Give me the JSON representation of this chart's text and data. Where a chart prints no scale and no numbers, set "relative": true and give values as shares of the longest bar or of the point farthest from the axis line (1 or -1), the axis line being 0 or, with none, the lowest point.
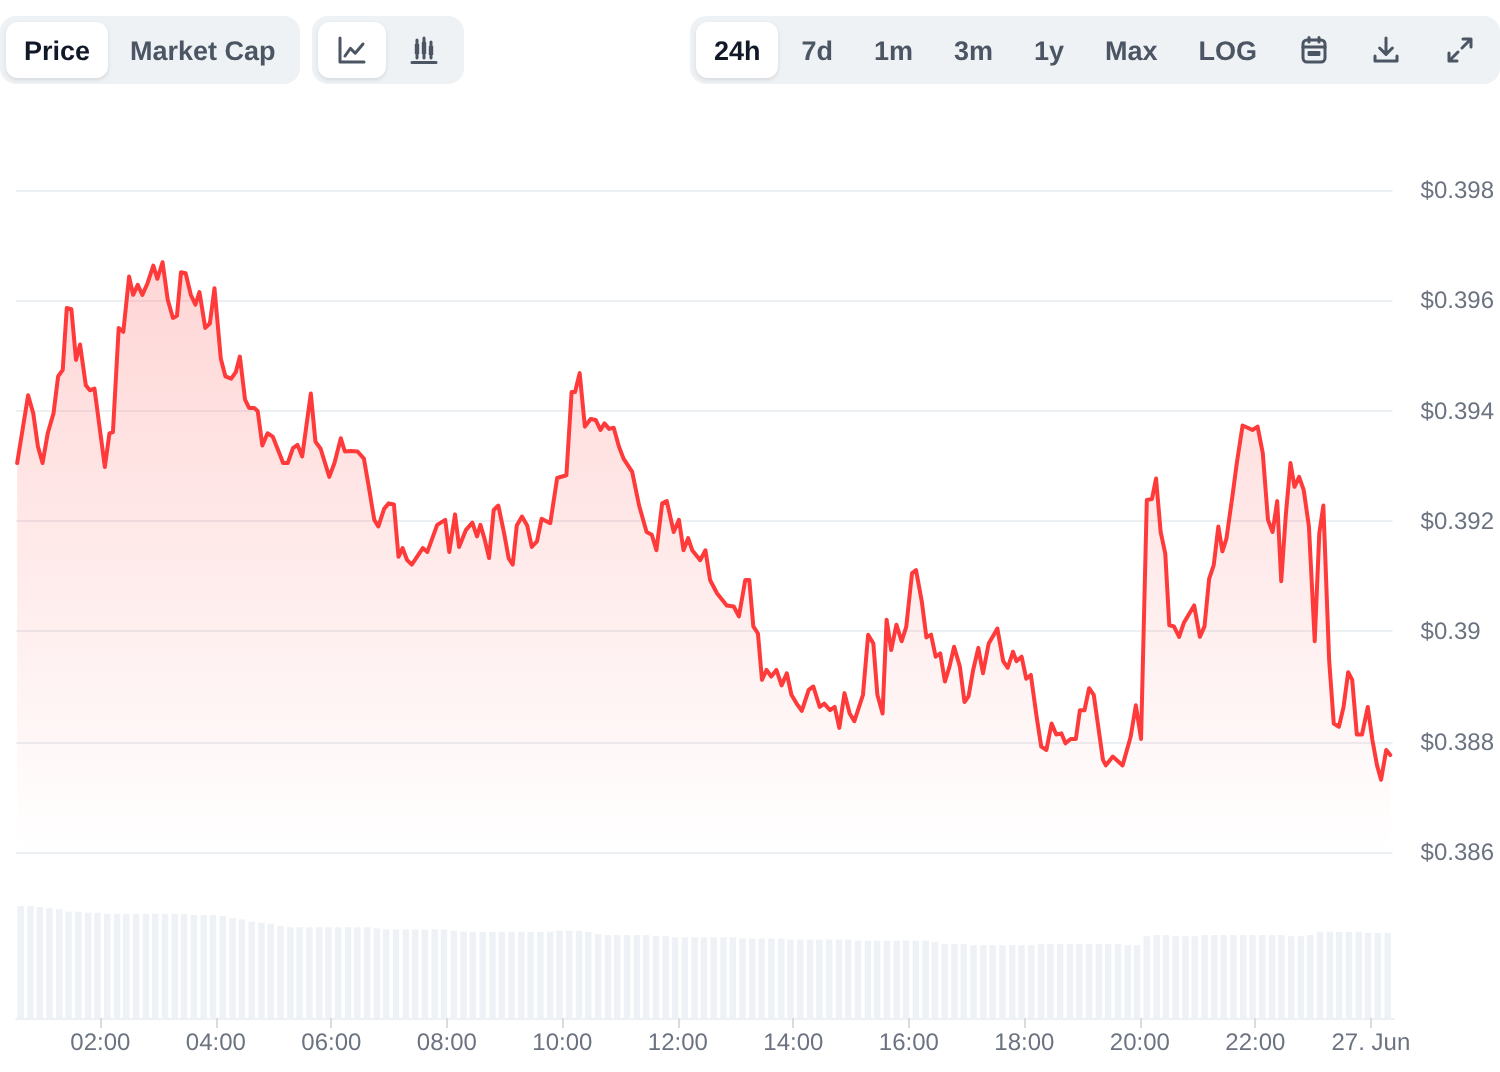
{
  "chart_data": [
    {
      "type": "area",
      "annotations": [
        "Price",
        "Market Cap",
        "24h",
        "7d",
        "1m",
        "3m",
        "1y",
        "Max",
        "LOG"
      ],
      "x": [
        0.56,
        0.75,
        0.84,
        0.92,
        1.0,
        1.09,
        1.19,
        1.27,
        1.35,
        1.42,
        1.5,
        1.58,
        1.65,
        1.75,
        1.82,
        1.9,
        2.08,
        2.16,
        2.22,
        2.32,
        2.4,
        2.5,
        2.57,
        2.65,
        2.73,
        2.82,
        2.92,
        2.99,
        3.08,
        3.17,
        3.26,
        3.33,
        3.4,
        3.48,
        3.57,
        3.65,
        3.72,
        3.82,
        3.9,
        3.98,
        4.09,
        4.17,
        4.27,
        4.35,
        4.42,
        4.51,
        4.58,
        4.67,
        4.73,
        4.81,
        4.9,
        4.99,
        5.07,
        5.17,
        5.25,
        5.34,
        5.42,
        5.5,
        5.65,
        5.73,
        5.82,
        5.97,
        6.06,
        6.17,
        6.24,
        6.34,
        6.46,
        6.57,
        6.65,
        6.75,
        6.82,
        6.92,
        7.0,
        7.09,
        7.17,
        7.24,
        7.32,
        7.4,
        7.49,
        7.59,
        7.67,
        7.84,
        7.98,
        8.05,
        8.15,
        8.22,
        8.34,
        8.45,
        8.53,
        8.59,
        8.66,
        8.74,
        8.82,
        8.9,
        9.0,
        9.08,
        9.15,
        9.22,
        9.31,
        9.4,
        9.48,
        9.57,
        9.65,
        9.8,
        9.92,
        10.08,
        10.17,
        10.23,
        10.31,
        10.4,
        10.5,
        10.59,
        10.67,
        10.74,
        10.82,
        10.9,
        10.99,
        11.07,
        11.22,
        11.34,
        11.47,
        11.56,
        11.64,
        11.74,
        11.82,
        11.94,
        12.03,
        12.11,
        12.19,
        12.26,
        12.4,
        12.49,
        12.57,
        12.69,
        12.86,
        12.98,
        13.07,
        13.18,
        13.25,
        13.32,
        13.4,
        13.47,
        13.55,
        13.63,
        13.72,
        13.81,
        13.9,
        13.98,
        14.07,
        14.16,
        14.28,
        14.36,
        14.47,
        14.55,
        14.65,
        14.73,
        14.81,
        14.9,
        14.99,
        15.07,
        15.22,
        15.31,
        15.4,
        15.47,
        15.56,
        15.63,
        15.71,
        15.8,
        15.89,
        15.97,
        16.07,
        16.14,
        16.24,
        16.32,
        16.4,
        16.48,
        16.56,
        16.64,
        16.72,
        16.8,
        16.9,
        16.98,
        17.05,
        17.13,
        17.22,
        17.3,
        17.4,
        17.55,
        17.65,
        17.73,
        17.82,
        17.88,
        17.97,
        18.05,
        18.13,
        18.23,
        18.31,
        18.4,
        18.49,
        18.57,
        18.66,
        18.73,
        18.82,
        18.91,
        18.98,
        19.06,
        19.14,
        19.22,
        19.38,
        19.43,
        19.55,
        19.72,
        19.86,
        19.95,
        20.04,
        20.14,
        20.23,
        20.3,
        20.38,
        20.46,
        20.53,
        20.61,
        20.7,
        20.78,
        20.96,
        21.06,
        21.14,
        21.22,
        21.3,
        21.38,
        21.45,
        21.52,
        21.63,
        21.7,
        21.8,
        21.89,
        21.97,
        22.06,
        22.15,
        22.24,
        22.32,
        22.4,
        22.47,
        22.55,
        22.63,
        22.7,
        22.78,
        22.86,
        22.95,
        23.05,
        23.13,
        23.2,
        23.3,
        23.38,
        23.47,
        23.55,
        23.63,
        23.7,
        23.78,
        23.87,
        23.97,
        24.05,
        24.13,
        24.2,
        24.29,
        24.36
      ],
      "values": [
        0.39305,
        0.39428,
        0.39395,
        0.39335,
        0.39305,
        0.39359,
        0.39395,
        0.39462,
        0.39474,
        0.39586,
        0.39584,
        0.39492,
        0.3952,
        0.39446,
        0.39437,
        0.3944,
        0.39298,
        0.39359,
        0.39361,
        0.3955,
        0.39543,
        0.39643,
        0.3961,
        0.39628,
        0.3961,
        0.39631,
        0.39663,
        0.39639,
        0.39669,
        0.39601,
        0.39568,
        0.39572,
        0.39651,
        0.39649,
        0.3961,
        0.39592,
        0.39615,
        0.3955,
        0.39558,
        0.39622,
        0.39494,
        0.39462,
        0.39458,
        0.3947,
        0.39498,
        0.3942,
        0.39405,
        0.39405,
        0.39399,
        0.39337,
        0.39359,
        0.39353,
        0.39332,
        0.39305,
        0.39305,
        0.39332,
        0.39338,
        0.39317,
        0.39431,
        0.39344,
        0.39331,
        0.3928,
        0.39305,
        0.3935,
        0.39326,
        0.39327,
        0.39326,
        0.39313,
        0.39265,
        0.39202,
        0.3919,
        0.39222,
        0.39232,
        0.3923,
        0.39135,
        0.39151,
        0.39129,
        0.39121,
        0.39135,
        0.39151,
        0.39144,
        0.39193,
        0.39202,
        0.39144,
        0.39212,
        0.39153,
        0.39184,
        0.39197,
        0.39172,
        0.39193,
        0.39168,
        0.39133,
        0.3922,
        0.39228,
        0.39178,
        0.39132,
        0.39121,
        0.39192,
        0.39208,
        0.39192,
        0.39153,
        0.39163,
        0.39204,
        0.39196,
        0.39278,
        0.39283,
        0.39434,
        0.39434,
        0.39468,
        0.39371,
        0.39385,
        0.39383,
        0.39365,
        0.39377,
        0.39367,
        0.39369,
        0.39335,
        0.39313,
        0.39289,
        0.39228,
        0.3918,
        0.39175,
        0.39147,
        0.39232,
        0.39236,
        0.3918,
        0.39202,
        0.39147,
        0.39169,
        0.39147,
        0.39129,
        0.39147,
        0.39093,
        0.39069,
        0.39047,
        0.39045,
        0.39027,
        0.39093,
        0.39093,
        0.39009,
        0.38996,
        0.38912,
        0.3893,
        0.38918,
        0.3893,
        0.38902,
        0.38924,
        0.38885,
        0.38869,
        0.38856,
        0.38894,
        0.389,
        0.38863,
        0.38869,
        0.38857,
        0.38863,
        0.38825,
        0.38888,
        0.38851,
        0.38837,
        0.38885,
        0.38994,
        0.38978,
        0.38885,
        0.38851,
        0.39021,
        0.38966,
        0.39012,
        0.38982,
        0.39008,
        0.39105,
        0.39111,
        0.39054,
        0.38989,
        0.38994,
        0.38954,
        0.3896,
        0.38909,
        0.38936,
        0.38972,
        0.38936,
        0.38872,
        0.38882,
        0.3893,
        0.3897,
        0.38924,
        0.38978,
        0.39005,
        0.38946,
        0.38934,
        0.38963,
        0.38946,
        0.38954,
        0.38914,
        0.38921,
        0.38845,
        0.38791,
        0.38785,
        0.38833,
        0.38813,
        0.38815,
        0.38797,
        0.38805,
        0.38805,
        0.38857,
        0.38857,
        0.38897,
        0.38885,
        0.38767,
        0.38757,
        0.38773,
        0.38757,
        0.38809,
        0.38866,
        0.38805,
        0.39238,
        0.3924,
        0.39277,
        0.3918,
        0.39141,
        0.39011,
        0.39009,
        0.3899,
        0.39015,
        0.39047,
        0.3899,
        0.39009,
        0.39095,
        0.3912,
        0.3919,
        0.39145,
        0.39168,
        0.3925,
        0.39305,
        0.39373,
        0.39369,
        0.39365,
        0.39371,
        0.39323,
        0.39202,
        0.3918,
        0.39236,
        0.39091,
        0.39212,
        0.39305,
        0.39262,
        0.3928,
        0.39256,
        0.3919,
        0.38982,
        0.39178,
        0.39228,
        0.38948,
        0.38833,
        0.38827,
        0.38863,
        0.38926,
        0.38912,
        0.38813,
        0.38813,
        0.38863,
        0.38803,
        0.38757,
        0.38731,
        0.38785,
        0.38776
      ],
      "color": "#ff3a3a",
      "xlim": [
        0.54,
        24.4
      ],
      "ylim": [
        0.386,
        0.398
      ],
      "yticks": [
        {
          "value": 0.386,
          "label": "$0.386"
        },
        {
          "value": 0.388,
          "label": "$0.388"
        },
        {
          "value": 0.39,
          "label": "$0.39"
        },
        {
          "value": 0.392,
          "label": "$0.392"
        },
        {
          "value": 0.394,
          "label": "$0.394"
        },
        {
          "value": 0.396,
          "label": "$0.396"
        },
        {
          "value": 0.398,
          "label": "$0.398"
        }
      ],
      "grid": "y",
      "tick_labels": "y"
    },
    {
      "type": "bar",
      "relative": true,
      "x": [
        0.62,
        0.79,
        0.95,
        1.12,
        1.29,
        1.45,
        1.62,
        1.79,
        1.95,
        2.12,
        2.29,
        2.45,
        2.62,
        2.79,
        2.95,
        3.12,
        3.29,
        3.45,
        3.62,
        3.79,
        3.95,
        4.12,
        4.29,
        4.45,
        4.62,
        4.79,
        4.95,
        5.12,
        5.29,
        5.45,
        5.62,
        5.79,
        5.95,
        6.12,
        6.29,
        6.45,
        6.62,
        6.79,
        6.95,
        7.12,
        7.29,
        7.45,
        7.62,
        7.79,
        7.95,
        8.12,
        8.29,
        8.45,
        8.62,
        8.79,
        8.95,
        9.12,
        9.29,
        9.45,
        9.62,
        9.79,
        9.95,
        10.12,
        10.29,
        10.45,
        10.62,
        10.79,
        10.95,
        11.12,
        11.29,
        11.45,
        11.62,
        11.79,
        11.95,
        12.12,
        12.29,
        12.45,
        12.62,
        12.79,
        12.95,
        13.12,
        13.29,
        13.45,
        13.62,
        13.79,
        13.95,
        14.12,
        14.29,
        14.45,
        14.62,
        14.79,
        14.95,
        15.12,
        15.29,
        15.45,
        15.62,
        15.79,
        15.95,
        16.12,
        16.29,
        16.45,
        16.62,
        16.79,
        16.95,
        17.12,
        17.29,
        17.45,
        17.62,
        17.79,
        17.95,
        18.12,
        18.29,
        18.45,
        18.62,
        18.79,
        18.95,
        19.12,
        19.29,
        19.45,
        19.62,
        19.79,
        19.95,
        20.12,
        20.29,
        20.45,
        20.62,
        20.79,
        20.95,
        21.12,
        21.29,
        21.45,
        21.62,
        21.79,
        21.95,
        22.12,
        22.29,
        22.45,
        22.62,
        22.79,
        22.95,
        23.12,
        23.29,
        23.45,
        23.62,
        23.79,
        23.95,
        24.12,
        24.29
      ],
      "values": [
        1,
        1,
        0.99,
        0.98,
        0.97,
        0.95,
        0.95,
        0.94,
        0.94,
        0.93,
        0.93,
        0.93,
        0.93,
        0.93,
        0.93,
        0.93,
        0.93,
        0.93,
        0.92,
        0.92,
        0.92,
        0.91,
        0.89,
        0.88,
        0.86,
        0.85,
        0.84,
        0.82,
        0.81,
        0.81,
        0.81,
        0.81,
        0.81,
        0.81,
        0.81,
        0.81,
        0.81,
        0.8,
        0.79,
        0.79,
        0.79,
        0.79,
        0.79,
        0.79,
        0.79,
        0.78,
        0.77,
        0.77,
        0.77,
        0.77,
        0.77,
        0.77,
        0.77,
        0.77,
        0.77,
        0.77,
        0.78,
        0.78,
        0.78,
        0.77,
        0.75,
        0.74,
        0.74,
        0.74,
        0.74,
        0.74,
        0.73,
        0.73,
        0.72,
        0.72,
        0.72,
        0.72,
        0.72,
        0.72,
        0.72,
        0.71,
        0.71,
        0.71,
        0.71,
        0.71,
        0.7,
        0.7,
        0.7,
        0.7,
        0.7,
        0.7,
        0.7,
        0.69,
        0.69,
        0.69,
        0.69,
        0.69,
        0.69,
        0.69,
        0.69,
        0.68,
        0.66,
        0.66,
        0.66,
        0.65,
        0.65,
        0.65,
        0.65,
        0.65,
        0.65,
        0.65,
        0.66,
        0.66,
        0.66,
        0.66,
        0.66,
        0.66,
        0.66,
        0.66,
        0.66,
        0.65,
        0.65,
        0.73,
        0.74,
        0.74,
        0.73,
        0.73,
        0.73,
        0.74,
        0.74,
        0.74,
        0.74,
        0.74,
        0.74,
        0.74,
        0.74,
        0.74,
        0.73,
        0.73,
        0.74,
        0.77,
        0.77,
        0.77,
        0.77,
        0.77,
        0.76,
        0.76,
        0.76
      ],
      "color": "#eef1f5",
      "xlim": [
        0.54,
        24.4
      ],
      "xticks": [
        {
          "value": 2,
          "label": "02:00"
        },
        {
          "value": 4,
          "label": "04:00"
        },
        {
          "value": 6,
          "label": "06:00"
        },
        {
          "value": 8,
          "label": "08:00"
        },
        {
          "value": 10,
          "label": "10:00"
        },
        {
          "value": 12,
          "label": "12:00"
        },
        {
          "value": 14,
          "label": "14:00"
        },
        {
          "value": 16,
          "label": "16:00"
        },
        {
          "value": 18,
          "label": "18:00"
        },
        {
          "value": 20,
          "label": "20:00"
        },
        {
          "value": 22,
          "label": "22:00"
        },
        {
          "value": 24,
          "label": "27. Jun"
        }
      ],
      "tick_labels": "x"
    }
  ]
}
